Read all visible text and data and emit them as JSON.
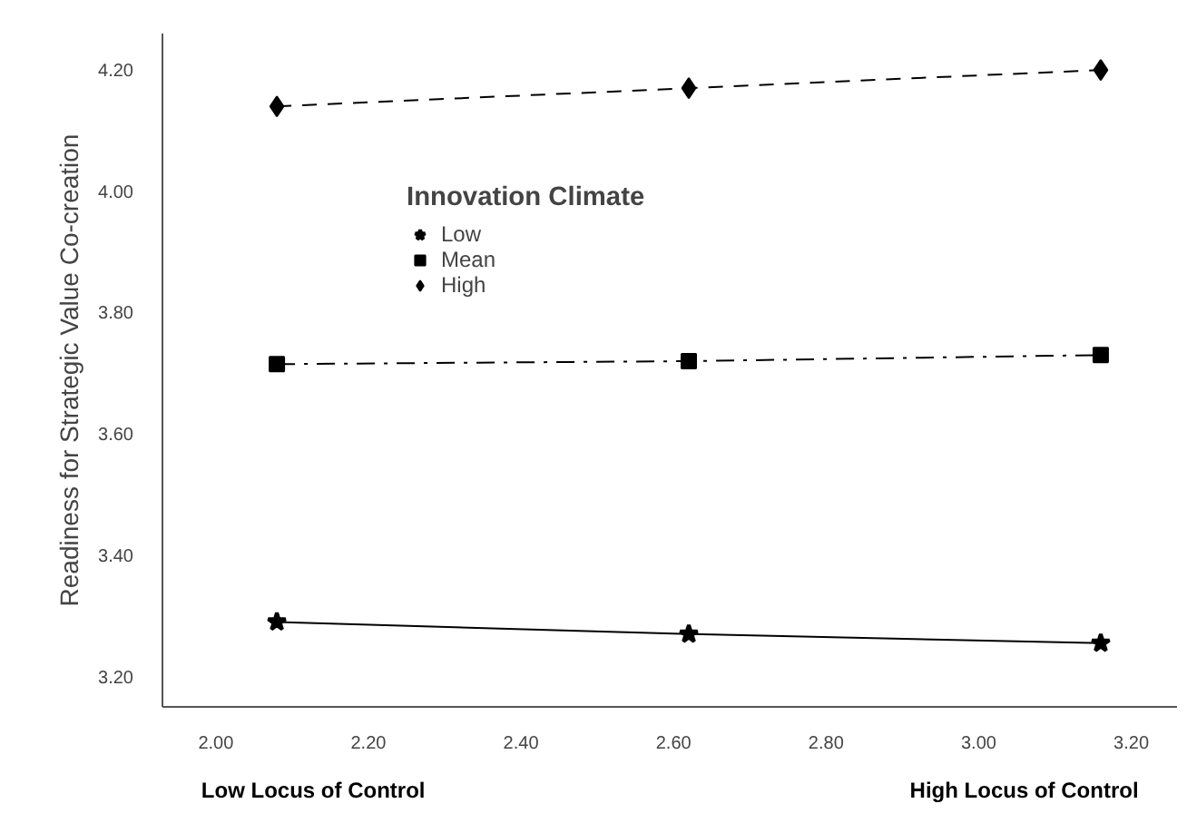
{
  "chart_data": {
    "type": "line",
    "ylabel": "Readiness for Strategic Value Co-creation",
    "legend_title": "Innovation Climate",
    "x": [
      2.08,
      2.62,
      3.16
    ],
    "series": [
      {
        "name": "Low",
        "color": "#000000",
        "values": [
          3.29,
          3.27,
          3.255
        ],
        "marker": "star",
        "line_style": "solid"
      },
      {
        "name": "Mean",
        "color": "#000000",
        "values": [
          3.715,
          3.72,
          3.73
        ],
        "marker": "square",
        "line_style": "dashdot"
      },
      {
        "name": "High",
        "color": "#000000",
        "values": [
          4.14,
          4.17,
          4.2
        ],
        "marker": "diamond",
        "line_style": "dashed"
      }
    ],
    "xlim": [
      1.93,
      3.26
    ],
    "ylim": [
      3.15,
      4.26
    ],
    "xticks": [
      {
        "value": 2.0,
        "label": "2.00"
      },
      {
        "value": 2.2,
        "label": "2.20"
      },
      {
        "value": 2.4,
        "label": "2.40"
      },
      {
        "value": 2.6,
        "label": "2.60"
      },
      {
        "value": 2.8,
        "label": "2.80"
      },
      {
        "value": 3.0,
        "label": "3.00"
      },
      {
        "value": 3.2,
        "label": "3.20"
      }
    ],
    "yticks": [
      {
        "value": 3.2,
        "label": "3.20"
      },
      {
        "value": 3.4,
        "label": "3.40"
      },
      {
        "value": 3.6,
        "label": "3.60"
      },
      {
        "value": 3.8,
        "label": "3.80"
      },
      {
        "value": 4.0,
        "label": "4.00"
      },
      {
        "value": 4.2,
        "label": "4.20"
      }
    ],
    "grid": false,
    "legend": "top left",
    "annotations": [
      "Low Locus of Control",
      "High Locus of Control"
    ]
  }
}
